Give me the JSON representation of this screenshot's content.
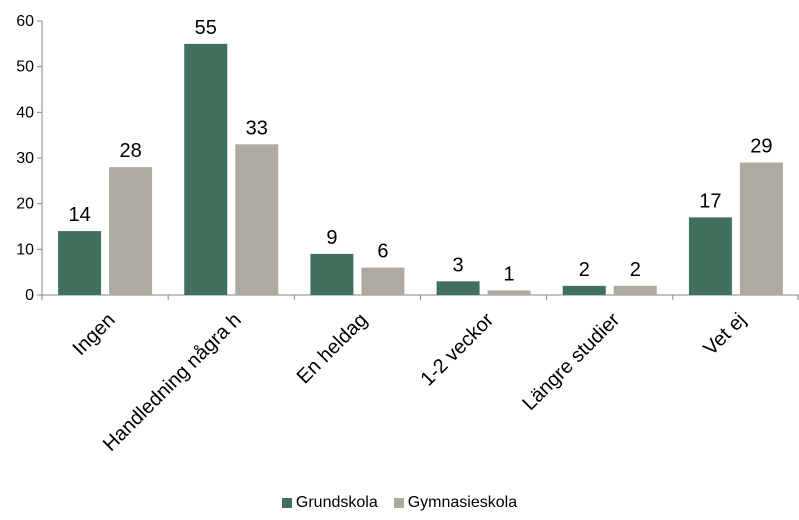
{
  "chart_data": {
    "type": "bar",
    "title": "",
    "xlabel": "",
    "ylabel": "",
    "categories": [
      "Ingen",
      "Handledning några h",
      "En heldag",
      "1-2 veckor",
      "Längre studier",
      "Vet ej"
    ],
    "series": [
      {
        "name": "Grundskola",
        "values": [
          14,
          55,
          9,
          3,
          2,
          17
        ],
        "color": "#41705c"
      },
      {
        "name": "Gymnasieskola",
        "values": [
          28,
          33,
          6,
          1,
          2,
          29
        ],
        "color": "#aeaa9f"
      }
    ],
    "ylim": [
      0,
      60
    ],
    "yticks": [
      0,
      10,
      20,
      30,
      40,
      50,
      60
    ],
    "grid": false,
    "data_labels": true,
    "legend_position": "bottom"
  }
}
